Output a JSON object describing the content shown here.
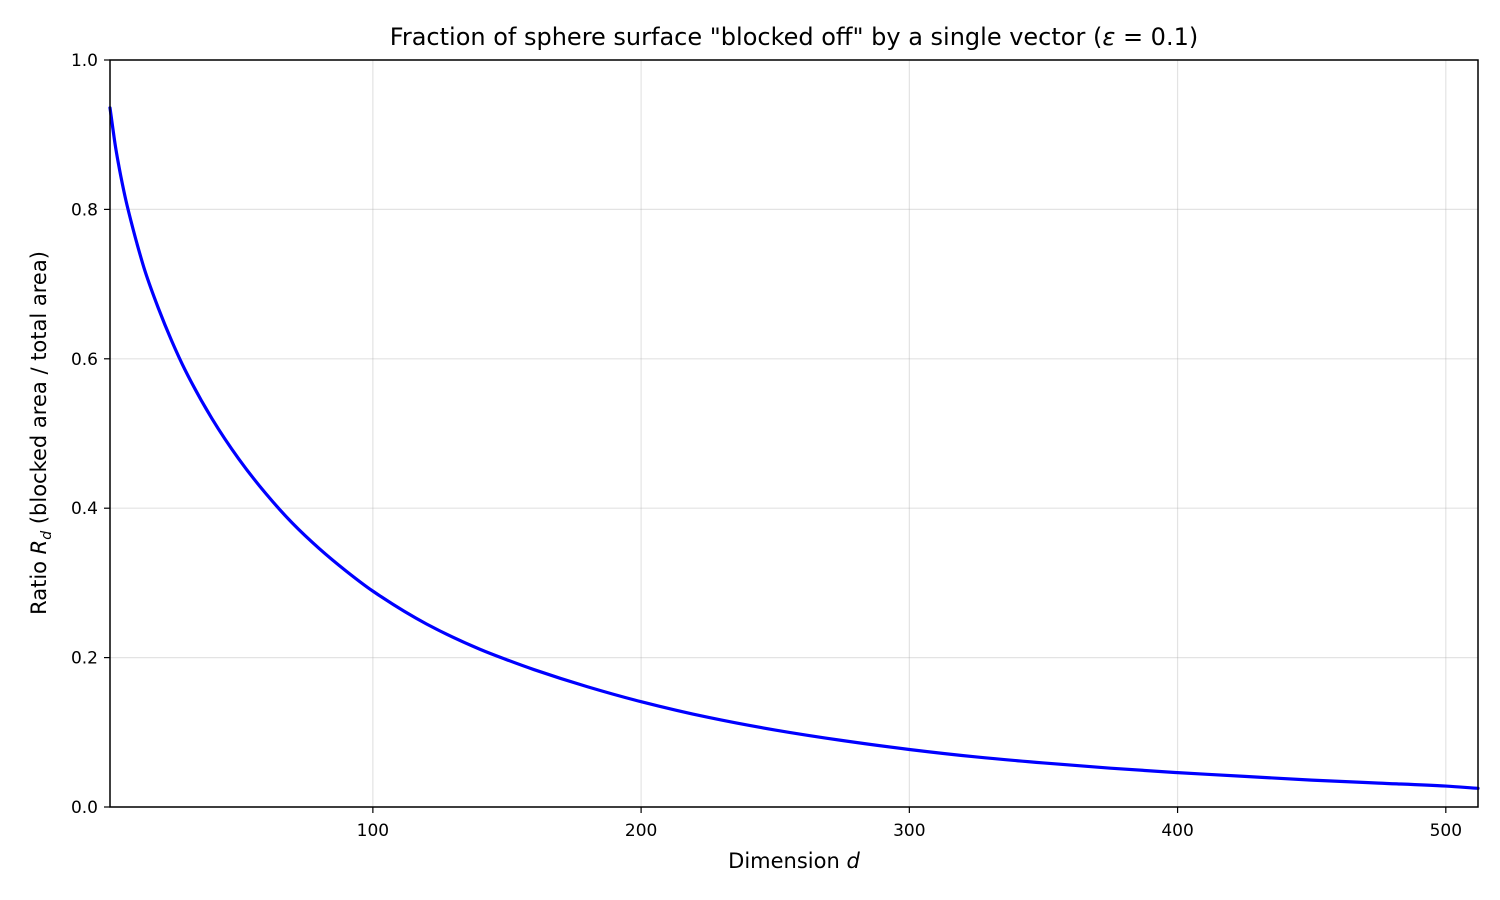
{
  "chart_data": {
    "type": "line",
    "title_prefix": "Fraction of sphere surface \"blocked off\" by a single vector (",
    "title_symbol": "ε",
    "title_suffix": " = 0.1)",
    "xlabel_text": "Dimension ",
    "xlabel_var": "d",
    "ylabel_prefix": "Ratio ",
    "ylabel_var": "R",
    "ylabel_sub": "d",
    "ylabel_suffix": " (blocked area / total area)",
    "xlim": [
      2,
      512
    ],
    "ylim": [
      0.0,
      1.0
    ],
    "x_ticks": [
      100,
      200,
      300,
      400,
      500
    ],
    "x_tick_labels": [
      "100",
      "200",
      "300",
      "400",
      "500"
    ],
    "y_ticks": [
      0.0,
      0.2,
      0.4,
      0.6,
      0.8,
      1.0
    ],
    "y_tick_labels": [
      "0.0",
      "0.2",
      "0.4",
      "0.6",
      "0.8",
      "1.0"
    ],
    "grid": true,
    "series": [
      {
        "color": "#0000ff",
        "x": [
          2,
          3,
          4,
          5,
          6,
          8,
          10,
          12,
          15,
          20,
          25,
          30,
          40,
          50,
          60,
          70,
          80,
          90,
          100,
          120,
          140,
          150,
          160,
          180,
          200,
          225,
          250,
          275,
          300,
          325,
          350,
          375,
          400,
          425,
          450,
          475,
          500,
          512
        ],
        "y": [
          0.936,
          0.91,
          0.885,
          0.864,
          0.845,
          0.811,
          0.782,
          0.755,
          0.718,
          0.668,
          0.624,
          0.585,
          0.52,
          0.466,
          0.42,
          0.38,
          0.346,
          0.316,
          0.289,
          0.245,
          0.211,
          0.197,
          0.184,
          0.161,
          0.141,
          0.12,
          0.103,
          0.089,
          0.077,
          0.067,
          0.059,
          0.052,
          0.046,
          0.041,
          0.036,
          0.032,
          0.028,
          0.025
        ]
      }
    ]
  }
}
